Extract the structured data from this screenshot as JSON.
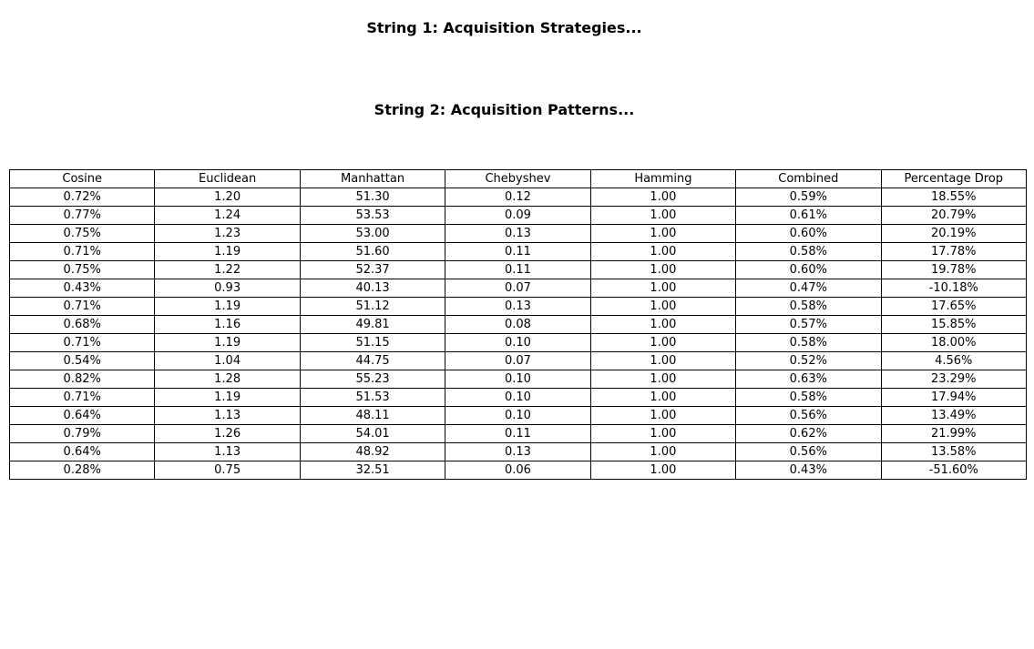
{
  "chart_data": {
    "type": "table",
    "titles": [
      "String 1: Acquisition Strategies...",
      "String 2: Acquisition Patterns..."
    ],
    "columns": [
      "Cosine",
      "Euclidean",
      "Manhattan",
      "Chebyshev",
      "Hamming",
      "Combined",
      "Percentage Drop"
    ],
    "rows": [
      [
        "0.72%",
        "1.20",
        "51.30",
        "0.12",
        "1.00",
        "0.59%",
        "18.55%"
      ],
      [
        "0.77%",
        "1.24",
        "53.53",
        "0.09",
        "1.00",
        "0.61%",
        "20.79%"
      ],
      [
        "0.75%",
        "1.23",
        "53.00",
        "0.13",
        "1.00",
        "0.60%",
        "20.19%"
      ],
      [
        "0.71%",
        "1.19",
        "51.60",
        "0.11",
        "1.00",
        "0.58%",
        "17.78%"
      ],
      [
        "0.75%",
        "1.22",
        "52.37",
        "0.11",
        "1.00",
        "0.60%",
        "19.78%"
      ],
      [
        "0.43%",
        "0.93",
        "40.13",
        "0.07",
        "1.00",
        "0.47%",
        "-10.18%"
      ],
      [
        "0.71%",
        "1.19",
        "51.12",
        "0.13",
        "1.00",
        "0.58%",
        "17.65%"
      ],
      [
        "0.68%",
        "1.16",
        "49.81",
        "0.08",
        "1.00",
        "0.57%",
        "15.85%"
      ],
      [
        "0.71%",
        "1.19",
        "51.15",
        "0.10",
        "1.00",
        "0.58%",
        "18.00%"
      ],
      [
        "0.54%",
        "1.04",
        "44.75",
        "0.07",
        "1.00",
        "0.52%",
        "4.56%"
      ],
      [
        "0.82%",
        "1.28",
        "55.23",
        "0.10",
        "1.00",
        "0.63%",
        "23.29%"
      ],
      [
        "0.71%",
        "1.19",
        "51.53",
        "0.10",
        "1.00",
        "0.58%",
        "17.94%"
      ],
      [
        "0.64%",
        "1.13",
        "48.11",
        "0.10",
        "1.00",
        "0.56%",
        "13.49%"
      ],
      [
        "0.79%",
        "1.26",
        "54.01",
        "0.11",
        "1.00",
        "0.62%",
        "21.99%"
      ],
      [
        "0.64%",
        "1.13",
        "48.92",
        "0.13",
        "1.00",
        "0.56%",
        "13.58%"
      ],
      [
        "0.28%",
        "0.75",
        "32.51",
        "0.06",
        "1.00",
        "0.43%",
        "-51.60%"
      ]
    ]
  }
}
